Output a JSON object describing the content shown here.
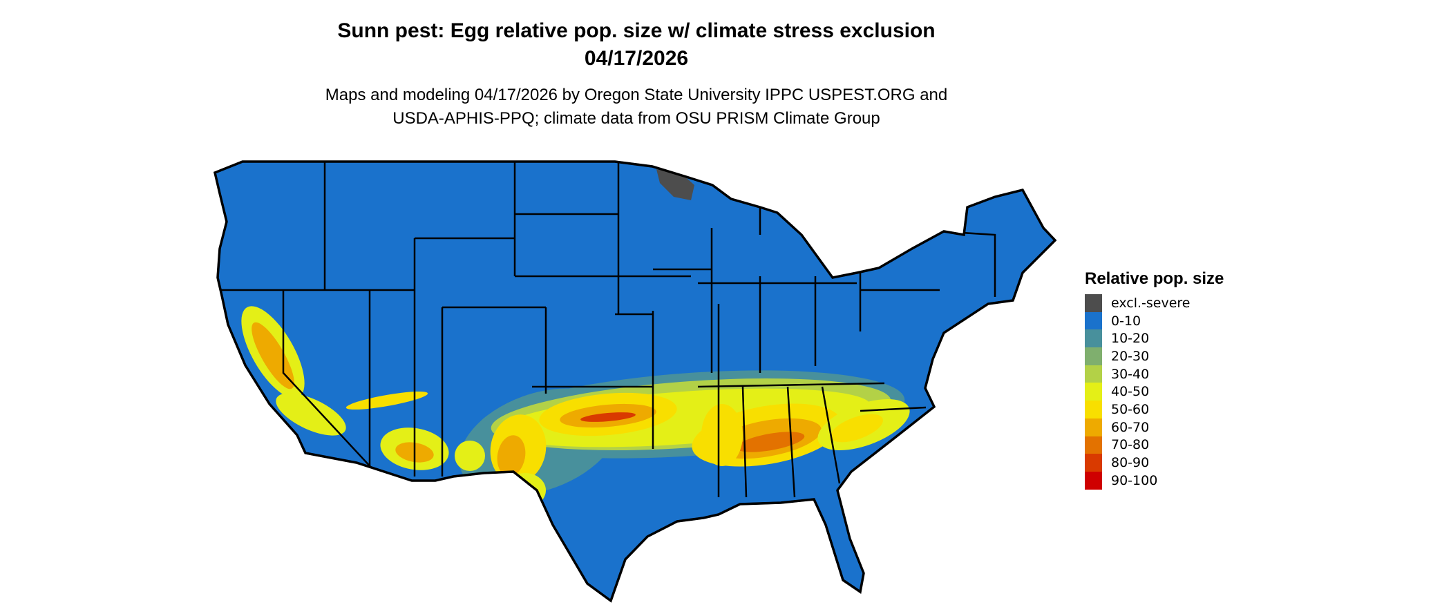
{
  "title_line1": "Sunn pest: Egg relative pop. size w/ climate stress exclusion",
  "title_line2": "04/17/2026",
  "subtitle_line1": "Maps and modeling 04/17/2026 by Oregon State University IPPC USPEST.ORG and",
  "subtitle_line2": "USDA-APHIS-PPQ; climate data from OSU PRISM Climate Group",
  "legend": {
    "title": "Relative pop. size",
    "items": [
      {
        "label": "excl.-severe",
        "color": "#4d4d4d"
      },
      {
        "label": "0-10",
        "color": "#1a72cc"
      },
      {
        "label": "10-20",
        "color": "#48909c"
      },
      {
        "label": "20-30",
        "color": "#7faf6e"
      },
      {
        "label": "30-40",
        "color": "#b3d147"
      },
      {
        "label": "40-50",
        "color": "#e4ef17"
      },
      {
        "label": "50-60",
        "color": "#f8df00"
      },
      {
        "label": "60-70",
        "color": "#eeaa00"
      },
      {
        "label": "70-80",
        "color": "#e37200"
      },
      {
        "label": "80-90",
        "color": "#d93a00"
      },
      {
        "label": "90-100",
        "color": "#cf0000"
      }
    ]
  }
}
